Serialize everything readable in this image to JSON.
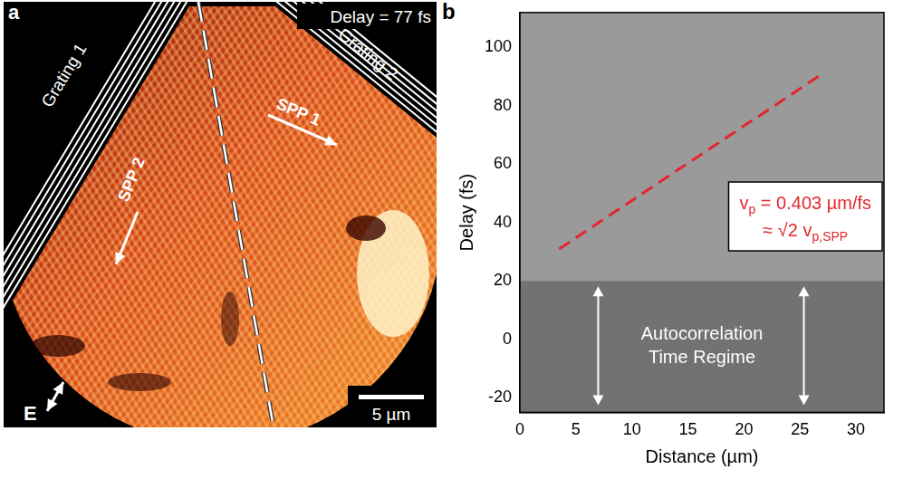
{
  "panel_a": {
    "letter": "a",
    "delay_label": "Delay = 77 fs",
    "grating_labels": [
      "Grating 1",
      "Grating 2"
    ],
    "arrow_labels": [
      "SPP 1",
      "SPP 2"
    ],
    "field_label": "E",
    "scale_bar": "5 µm"
  },
  "chart_data": {
    "letter": "b",
    "type": "line",
    "x_label": "Distance (µm)",
    "y_label": "Delay (fs)",
    "x": [
      3.5,
      27
    ],
    "values": [
      31,
      91
    ],
    "color": "#e3262d",
    "line_style": "dashed",
    "xlim": [
      0,
      32.5
    ],
    "ylim": [
      -25,
      112
    ],
    "xticks": [
      0,
      5,
      10,
      15,
      20,
      25,
      30
    ],
    "yticks": [
      -20,
      0,
      20,
      40,
      60,
      80,
      100
    ],
    "grid": false,
    "annotation": {
      "lines": [
        [
          {
            "text": "v"
          },
          {
            "text": "p",
            "sub": true
          },
          {
            "text": " = 0.403 µm/fs"
          }
        ],
        [
          {
            "text": "≈ √2 v"
          },
          {
            "text": "p,SPP",
            "sub": true
          }
        ]
      ]
    },
    "region": {
      "label": "Autocorrelation Time Regime",
      "ylim": [
        -25,
        20
      ]
    }
  }
}
